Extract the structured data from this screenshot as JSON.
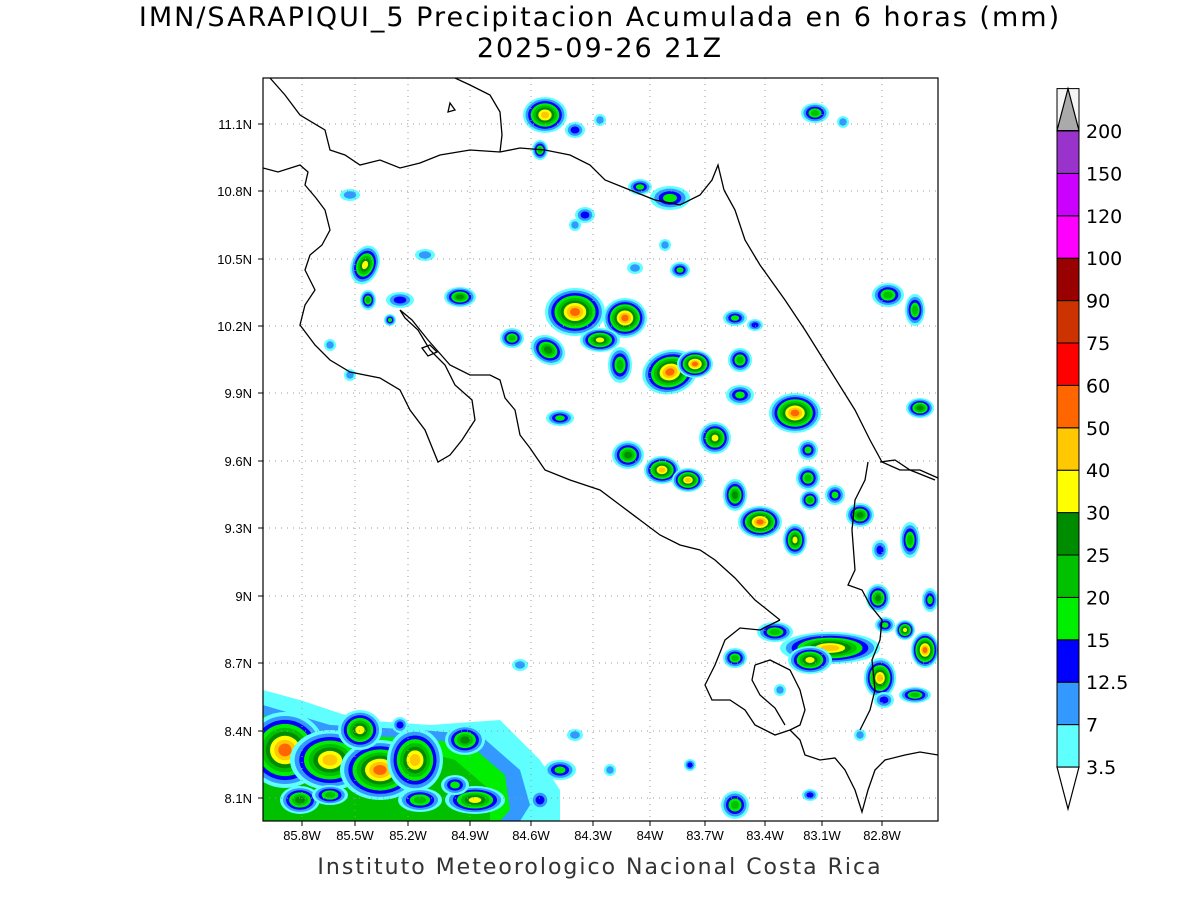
{
  "title": "IMN/SARAPIQUI_5 Precipitacion Acumulada en 6 horas (mm)",
  "subtitle": "2025-09-26 21Z",
  "footer": "Instituto Meteorologico Nacional Costa Rica",
  "axes": {
    "lon_ticks": [
      "85.8W",
      "85.5W",
      "85.2W",
      "84.9W",
      "84.6W",
      "84.3W",
      "84W",
      "83.7W",
      "83.4W",
      "83.1W",
      "82.8W"
    ],
    "lat_ticks": [
      "11.1N",
      "10.8N",
      "10.5N",
      "10.2N",
      "9.9N",
      "9.6N",
      "9.3N",
      "9N",
      "8.7N",
      "8.4N",
      "8.1N"
    ]
  },
  "legend": {
    "levels": [
      "3.5",
      "7",
      "12.5",
      "15",
      "20",
      "25",
      "30",
      "40",
      "50",
      "60",
      "75",
      "90",
      "100",
      "120",
      "150",
      "200"
    ],
    "colors": [
      "#60ffff",
      "#3399ff",
      "#0000ff",
      "#00ee00",
      "#00c000",
      "#008c00",
      "#ffff00",
      "#ffc800",
      "#ff6600",
      "#ff0000",
      "#cc3300",
      "#990000",
      "#ff00ff",
      "#cc00ff",
      "#9933cc",
      "#f5f5f5",
      "#aaaaaa"
    ]
  },
  "colors": {
    "coast": "#000000",
    "grid": "#999999"
  }
}
